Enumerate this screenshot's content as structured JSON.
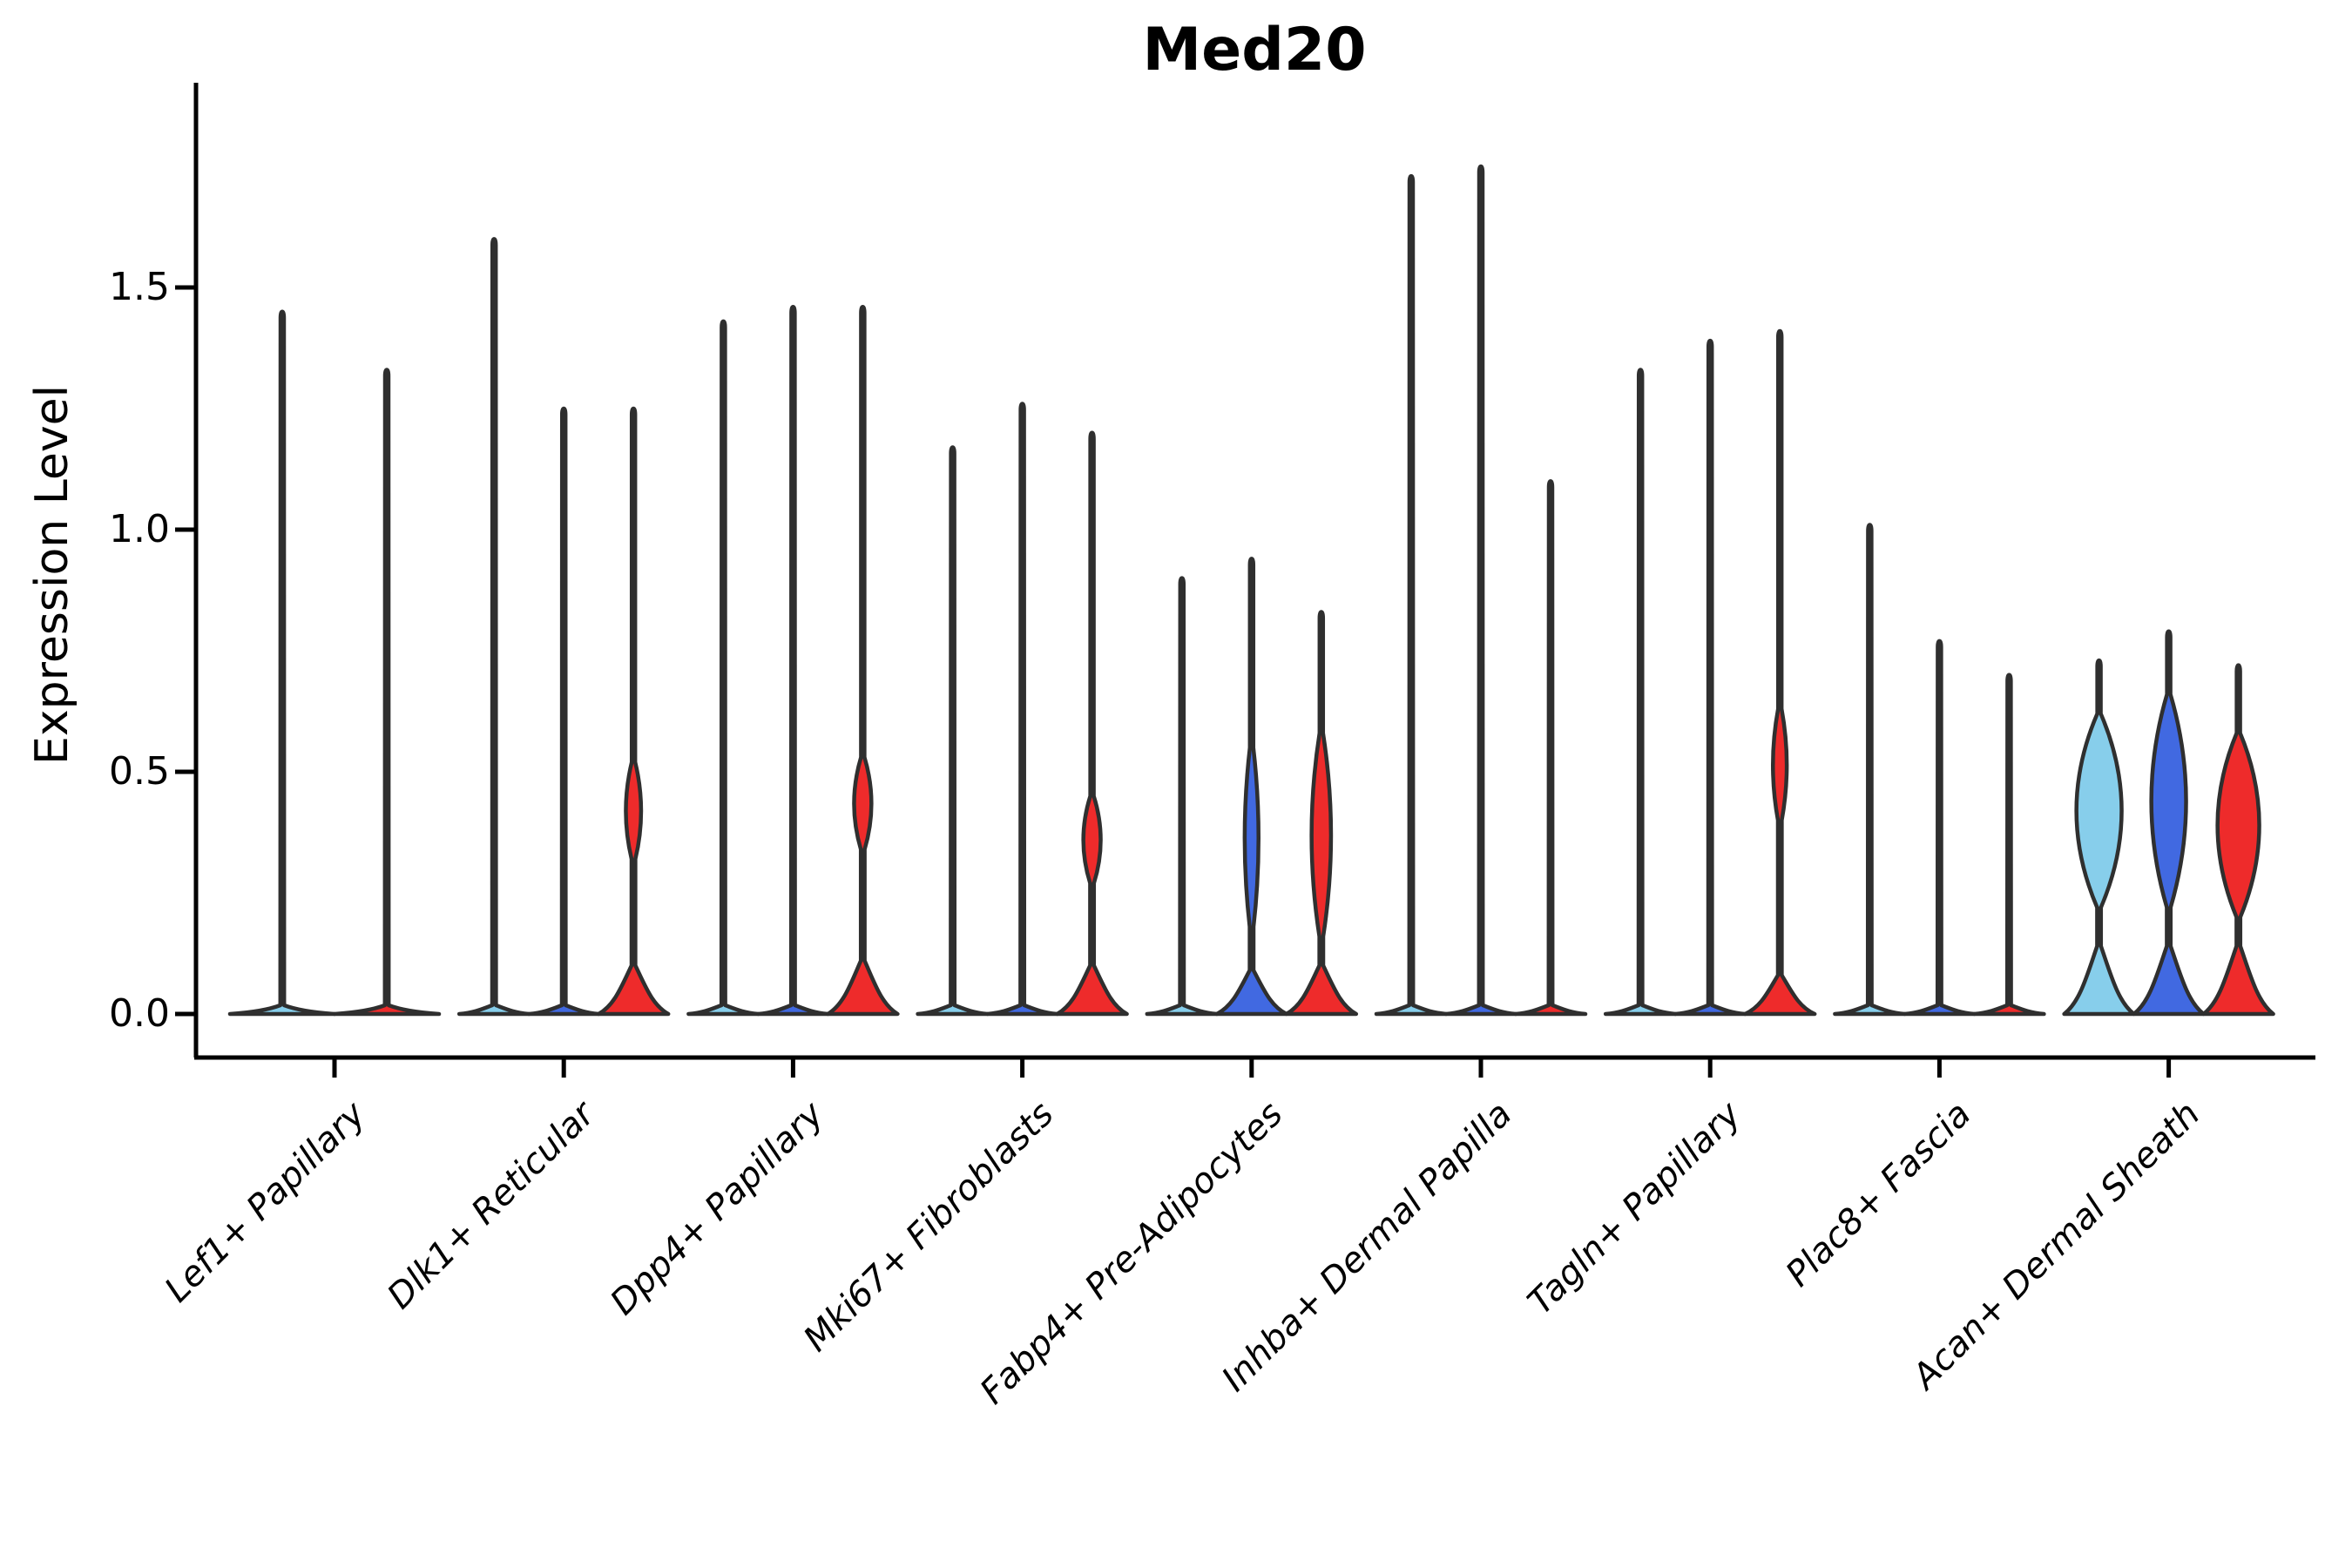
{
  "title": "Med20",
  "axes": {
    "y_label": "Expression Level",
    "y_ticks": [
      "0.0",
      "0.5",
      "1.0",
      "1.5"
    ],
    "y_tick_values": [
      0.0,
      0.5,
      1.0,
      1.5
    ]
  },
  "colors": {
    "skyblue": "#87CEEB",
    "royalblue": "#4169E1",
    "red": "#EE2B2B",
    "violin_outline": "#2f2f2f",
    "axis": "#000000",
    "background": "#ffffff"
  },
  "chart_data": {
    "type": "violin",
    "title": "Med20",
    "xlabel": "",
    "ylabel": "Expression Level",
    "ylim": [
      -0.09,
      1.92
    ],
    "yticks": [
      0.0,
      0.5,
      1.0,
      1.5
    ],
    "grid": false,
    "legend": "none",
    "note": "Grouped violin plot; most expression values are 0 so each violin is a flat base with a thin spike to its max; colored bodies mark violins with appreciable nonzero density. Hue palette order: skyblue, royalblue, red.",
    "categories": [
      "Lef1+ Papillary",
      "Dlk1+ Reticular",
      "Dpp4+ Papillary",
      "Mki67+ Fibroblasts",
      "Fabp4+ Pre-Adipocytes",
      "Inhba+ Dermal Papilla",
      "Tagln+ Papillary",
      "Plac8+ Fascia",
      "Acan+ Dermal Sheath"
    ],
    "series_colors": [
      "#87CEEB",
      "#4169E1",
      "#EE2B2B"
    ],
    "groups": [
      {
        "category": "Lef1+ Papillary",
        "violins": [
          {
            "color": "#87CEEB",
            "max": 1.45,
            "body": null
          },
          {
            "color": "#EE2B2B",
            "max": 1.33,
            "body": null
          }
        ]
      },
      {
        "category": "Dlk1+ Reticular",
        "violins": [
          {
            "color": "#87CEEB",
            "max": 1.6,
            "body": null
          },
          {
            "color": "#4169E1",
            "max": 1.25,
            "body": null
          },
          {
            "color": "#EE2B2B",
            "max": 1.25,
            "body": {
              "foot": 0.1,
              "bulge_lo": 0.32,
              "bulge_hi": 0.52,
              "peak_frac": 0.22
            }
          }
        ]
      },
      {
        "category": "Dpp4+ Papillary",
        "violins": [
          {
            "color": "#87CEEB",
            "max": 1.43,
            "body": null
          },
          {
            "color": "#4169E1",
            "max": 1.46,
            "body": null
          },
          {
            "color": "#EE2B2B",
            "max": 1.46,
            "body": {
              "foot": 0.11,
              "bulge_lo": 0.34,
              "bulge_hi": 0.53,
              "peak_frac": 0.25
            }
          }
        ]
      },
      {
        "category": "Mki67+ Fibroblasts",
        "violins": [
          {
            "color": "#87CEEB",
            "max": 1.17,
            "body": null
          },
          {
            "color": "#4169E1",
            "max": 1.26,
            "body": null
          },
          {
            "color": "#EE2B2B",
            "max": 1.2,
            "body": {
              "foot": 0.1,
              "bulge_lo": 0.27,
              "bulge_hi": 0.45,
              "peak_frac": 0.25
            }
          }
        ]
      },
      {
        "category": "Fabp4+ Pre-Adipocytes",
        "violins": [
          {
            "color": "#87CEEB",
            "max": 0.9,
            "body": null
          },
          {
            "color": "#4169E1",
            "max": 0.94,
            "body": {
              "foot": 0.09,
              "bulge_lo": 0.18,
              "bulge_hi": 0.55,
              "peak_frac": 0.2
            }
          },
          {
            "color": "#EE2B2B",
            "max": 0.83,
            "body": {
              "foot": 0.1,
              "bulge_lo": 0.16,
              "bulge_hi": 0.58,
              "peak_frac": 0.28
            }
          }
        ]
      },
      {
        "category": "Inhba+ Dermal Papilla",
        "violins": [
          {
            "color": "#87CEEB",
            "max": 1.73,
            "body": null
          },
          {
            "color": "#4169E1",
            "max": 1.75,
            "body": null
          },
          {
            "color": "#EE2B2B",
            "max": 1.1,
            "body": null
          }
        ]
      },
      {
        "category": "Tagln+ Papillary",
        "violins": [
          {
            "color": "#87CEEB",
            "max": 1.33,
            "body": null
          },
          {
            "color": "#4169E1",
            "max": 1.39,
            "body": null
          },
          {
            "color": "#EE2B2B",
            "max": 1.41,
            "body": {
              "foot": 0.08,
              "bulge_lo": 0.4,
              "bulge_hi": 0.63,
              "peak_frac": 0.2
            }
          }
        ]
      },
      {
        "category": "Plac8+ Fascia",
        "violins": [
          {
            "color": "#87CEEB",
            "max": 1.01,
            "body": null
          },
          {
            "color": "#4169E1",
            "max": 0.77,
            "body": null
          },
          {
            "color": "#EE2B2B",
            "max": 0.7,
            "body": null
          }
        ]
      },
      {
        "category": "Acan+ Dermal Sheath",
        "violins": [
          {
            "color": "#87CEEB",
            "max": 0.73,
            "body": {
              "foot": 0.14,
              "bulge_lo": 0.22,
              "bulge_hi": 0.62,
              "peak_frac": 0.65
            }
          },
          {
            "color": "#4169E1",
            "max": 0.79,
            "body": {
              "foot": 0.14,
              "bulge_lo": 0.22,
              "bulge_hi": 0.66,
              "peak_frac": 0.5
            }
          },
          {
            "color": "#EE2B2B",
            "max": 0.72,
            "body": {
              "foot": 0.14,
              "bulge_lo": 0.2,
              "bulge_hi": 0.58,
              "peak_frac": 0.6
            }
          }
        ]
      }
    ]
  }
}
